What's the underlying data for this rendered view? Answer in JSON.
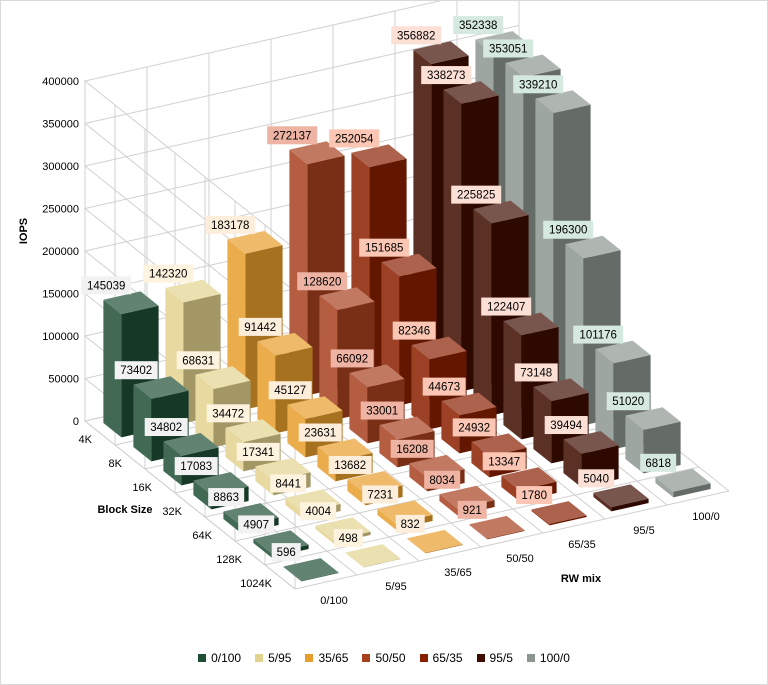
{
  "chart_data": {
    "type": "bar",
    "subtype": "3d-column",
    "title": "",
    "ylabel": "IOPS",
    "xlabel": "Block Size",
    "zlabel": "RW mix",
    "ylim": [
      0,
      400000
    ],
    "yticks": [
      0,
      50000,
      100000,
      150000,
      200000,
      250000,
      300000,
      350000,
      400000
    ],
    "grid": true,
    "legend": "bottom",
    "categories": [
      "4K",
      "8K",
      "16K",
      "32K",
      "64K",
      "128K",
      "1024K"
    ],
    "series": [
      {
        "name": "0/100",
        "color": "#1f4e36",
        "label_bg": "#f2f2f2",
        "values": [
          145039,
          73402,
          34802,
          17083,
          8863,
          4907,
          596
        ]
      },
      {
        "name": "5/95",
        "color": "#e3d28e",
        "label_bg": "#fdf3df",
        "values": [
          142320,
          68631,
          34472,
          17341,
          8441,
          4004,
          498
        ]
      },
      {
        "name": "35/65",
        "color": "#e89e2c",
        "label_bg": "#fdeedb",
        "values": [
          183178,
          91442,
          45127,
          23631,
          13682,
          7231,
          832
        ]
      },
      {
        "name": "50/50",
        "color": "#a8401f",
        "label_bg": "#eeb3a2",
        "values": [
          272137,
          128620,
          66092,
          33001,
          16208,
          8034,
          921
        ]
      },
      {
        "name": "65/35",
        "color": "#8a1f00",
        "label_bg": "#fbc6b4",
        "values": [
          252054,
          151685,
          82346,
          44673,
          24932,
          13347,
          1780
        ]
      },
      {
        "name": "95/5",
        "color": "#3e0d00",
        "label_bg": "#fde0d5",
        "values": [
          356882,
          338273,
          225825,
          122407,
          73148,
          39494,
          5040
        ]
      },
      {
        "name": "100/0",
        "color": "#8c968f",
        "label_bg": "#d5e9de",
        "values": [
          352338,
          353051,
          339210,
          196300,
          101176,
          51020,
          6818
        ]
      }
    ]
  }
}
